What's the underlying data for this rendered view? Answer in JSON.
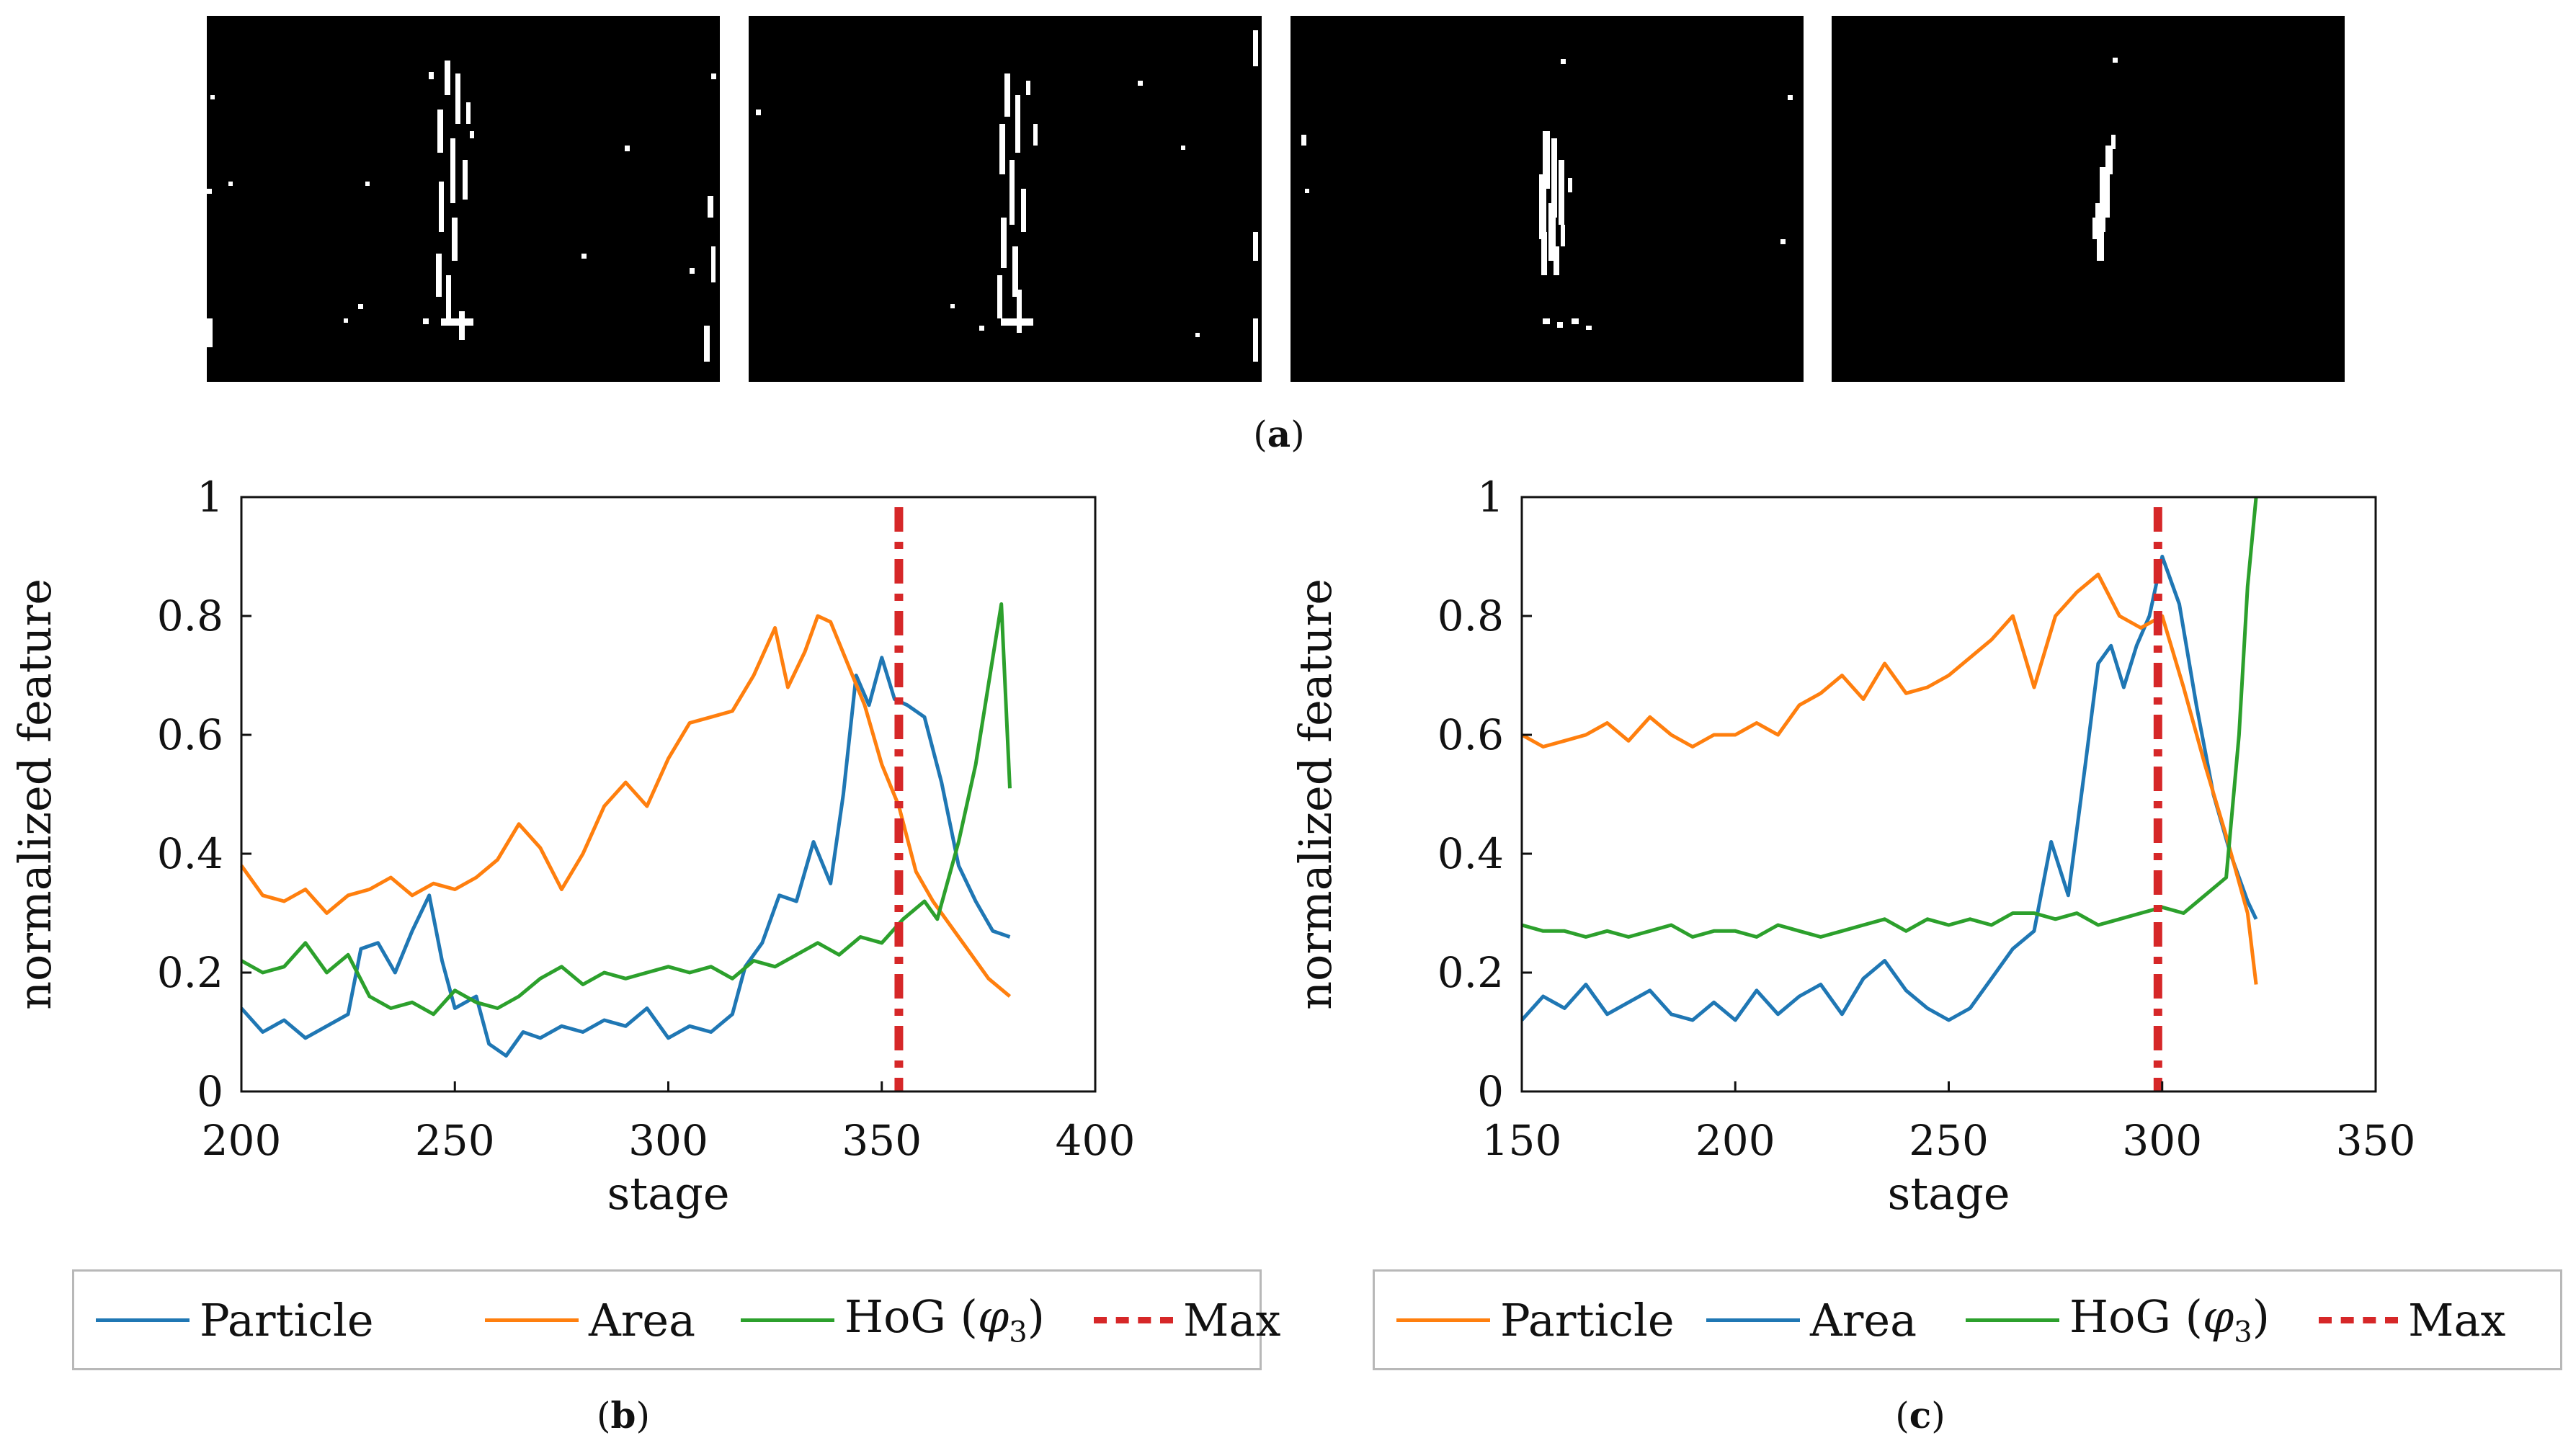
{
  "figure_labels": {
    "a": "a",
    "b": "b",
    "c": "c"
  },
  "colors": {
    "blue": "#1f77b4",
    "orange": "#ff7f0e",
    "green": "#2ca02c",
    "red": "#d62728"
  },
  "chart_data": [
    {
      "id": "b",
      "type": "line",
      "xlabel": "stage",
      "ylabel": "normalized feature",
      "xlim": [
        200,
        400
      ],
      "ylim": [
        0,
        1
      ],
      "xticks": [
        200,
        250,
        300,
        350,
        400
      ],
      "yticks": [
        0,
        0.2,
        0.4,
        0.6,
        0.8,
        1
      ],
      "ytick_labels": [
        "0",
        "0.2",
        "0.4",
        "0.6",
        "0.8",
        "1"
      ],
      "max_stage": 354,
      "series": [
        {
          "name": "Particle",
          "color": "#1f77b4",
          "x": [
            200,
            205,
            210,
            215,
            220,
            225,
            228,
            232,
            236,
            240,
            244,
            247,
            250,
            255,
            258,
            262,
            266,
            270,
            275,
            280,
            285,
            290,
            295,
            300,
            305,
            310,
            315,
            318,
            322,
            326,
            330,
            334,
            338,
            341,
            344,
            347,
            350,
            353,
            356,
            360,
            364,
            368,
            372,
            376,
            380
          ],
          "y": [
            0.14,
            0.1,
            0.12,
            0.09,
            0.11,
            0.13,
            0.24,
            0.25,
            0.2,
            0.27,
            0.33,
            0.22,
            0.14,
            0.16,
            0.08,
            0.06,
            0.1,
            0.09,
            0.11,
            0.1,
            0.12,
            0.11,
            0.14,
            0.09,
            0.11,
            0.1,
            0.13,
            0.21,
            0.25,
            0.33,
            0.32,
            0.42,
            0.35,
            0.5,
            0.7,
            0.65,
            0.73,
            0.66,
            0.65,
            0.63,
            0.52,
            0.38,
            0.32,
            0.27,
            0.26
          ]
        },
        {
          "name": "Area",
          "color": "#ff7f0e",
          "x": [
            200,
            205,
            210,
            215,
            220,
            225,
            230,
            235,
            240,
            245,
            250,
            255,
            260,
            265,
            270,
            275,
            280,
            285,
            290,
            295,
            300,
            305,
            310,
            315,
            320,
            325,
            328,
            332,
            335,
            338,
            342,
            346,
            350,
            354,
            358,
            362,
            366,
            370,
            375,
            380
          ],
          "y": [
            0.38,
            0.33,
            0.32,
            0.34,
            0.3,
            0.33,
            0.34,
            0.36,
            0.33,
            0.35,
            0.34,
            0.36,
            0.39,
            0.45,
            0.41,
            0.34,
            0.4,
            0.48,
            0.52,
            0.48,
            0.56,
            0.62,
            0.63,
            0.64,
            0.7,
            0.78,
            0.68,
            0.74,
            0.8,
            0.79,
            0.72,
            0.65,
            0.55,
            0.48,
            0.37,
            0.32,
            0.28,
            0.24,
            0.19,
            0.16
          ]
        },
        {
          "name": "HoG (φ3)",
          "color": "#2ca02c",
          "x": [
            200,
            205,
            210,
            215,
            220,
            225,
            230,
            235,
            240,
            245,
            250,
            255,
            260,
            265,
            270,
            275,
            280,
            285,
            290,
            295,
            300,
            305,
            310,
            315,
            320,
            325,
            330,
            335,
            340,
            345,
            350,
            355,
            360,
            363,
            368,
            372,
            378,
            380
          ],
          "y": [
            0.22,
            0.2,
            0.21,
            0.25,
            0.2,
            0.23,
            0.16,
            0.14,
            0.15,
            0.13,
            0.17,
            0.15,
            0.14,
            0.16,
            0.19,
            0.21,
            0.18,
            0.2,
            0.19,
            0.2,
            0.21,
            0.2,
            0.21,
            0.19,
            0.22,
            0.21,
            0.23,
            0.25,
            0.23,
            0.26,
            0.25,
            0.29,
            0.32,
            0.29,
            0.42,
            0.55,
            0.82,
            0.51
          ]
        }
      ],
      "legend": [
        "Particle",
        "Area",
        "HoG (",
        "φ",
        "3",
        ")",
        "Max"
      ]
    },
    {
      "id": "c",
      "type": "line",
      "xlabel": "stage",
      "ylabel": "normalized feature",
      "xlim": [
        150,
        350
      ],
      "ylim": [
        0,
        1
      ],
      "xticks": [
        150,
        200,
        250,
        300,
        350
      ],
      "yticks": [
        0,
        0.2,
        0.4,
        0.6,
        0.8,
        1
      ],
      "ytick_labels": [
        "0",
        "0.2",
        "0.4",
        "0.6",
        "0.8",
        "1"
      ],
      "max_stage": 299,
      "series": [
        {
          "name": "Area",
          "color": "#1f77b4",
          "x": [
            150,
            155,
            160,
            165,
            170,
            175,
            180,
            185,
            190,
            195,
            200,
            205,
            210,
            215,
            220,
            225,
            230,
            235,
            240,
            245,
            250,
            255,
            260,
            265,
            270,
            274,
            278,
            282,
            285,
            288,
            291,
            294,
            297,
            300,
            304,
            308,
            312,
            316,
            320,
            322
          ],
          "y": [
            0.12,
            0.16,
            0.14,
            0.18,
            0.13,
            0.15,
            0.17,
            0.13,
            0.12,
            0.15,
            0.12,
            0.17,
            0.13,
            0.16,
            0.18,
            0.13,
            0.19,
            0.22,
            0.17,
            0.14,
            0.12,
            0.14,
            0.19,
            0.24,
            0.27,
            0.42,
            0.33,
            0.55,
            0.72,
            0.75,
            0.68,
            0.75,
            0.8,
            0.9,
            0.82,
            0.65,
            0.5,
            0.4,
            0.32,
            0.29
          ]
        },
        {
          "name": "Particle",
          "color": "#ff7f0e",
          "x": [
            150,
            155,
            160,
            165,
            170,
            175,
            180,
            185,
            190,
            195,
            200,
            205,
            210,
            215,
            220,
            225,
            230,
            235,
            240,
            245,
            250,
            255,
            260,
            265,
            270,
            275,
            280,
            285,
            290,
            295,
            300,
            305,
            310,
            315,
            320,
            322
          ],
          "y": [
            0.6,
            0.58,
            0.59,
            0.6,
            0.62,
            0.59,
            0.63,
            0.6,
            0.58,
            0.6,
            0.6,
            0.62,
            0.6,
            0.65,
            0.67,
            0.7,
            0.66,
            0.72,
            0.67,
            0.68,
            0.7,
            0.73,
            0.76,
            0.8,
            0.68,
            0.8,
            0.84,
            0.87,
            0.8,
            0.78,
            0.8,
            0.68,
            0.55,
            0.43,
            0.3,
            0.18
          ]
        },
        {
          "name": "HoG (φ3)",
          "color": "#2ca02c",
          "x": [
            150,
            155,
            160,
            165,
            170,
            175,
            180,
            185,
            190,
            195,
            200,
            205,
            210,
            215,
            220,
            225,
            230,
            235,
            240,
            245,
            250,
            255,
            260,
            265,
            270,
            275,
            280,
            285,
            290,
            295,
            300,
            305,
            310,
            315,
            318,
            320,
            322
          ],
          "y": [
            0.28,
            0.27,
            0.27,
            0.26,
            0.27,
            0.26,
            0.27,
            0.28,
            0.26,
            0.27,
            0.27,
            0.26,
            0.28,
            0.27,
            0.26,
            0.27,
            0.28,
            0.29,
            0.27,
            0.29,
            0.28,
            0.29,
            0.28,
            0.3,
            0.3,
            0.29,
            0.3,
            0.28,
            0.29,
            0.3,
            0.31,
            0.3,
            0.33,
            0.36,
            0.6,
            0.85,
            1.0
          ]
        }
      ],
      "legend": [
        "Particle",
        "Area",
        "HoG (",
        "φ",
        "3",
        ")",
        "Max"
      ]
    }
  ]
}
